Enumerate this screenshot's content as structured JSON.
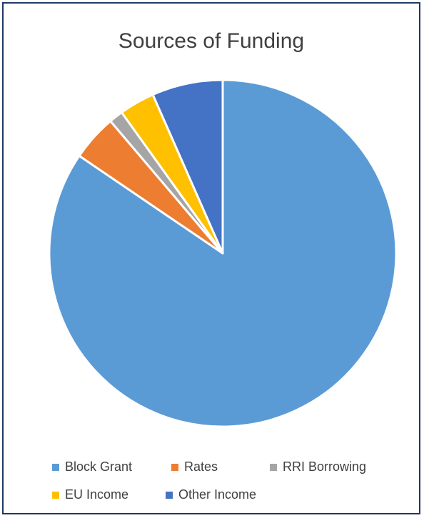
{
  "chart_data": {
    "type": "pie",
    "title": "Sources of Funding",
    "legend_position": "bottom",
    "slices": [
      {
        "label": "Block Grant",
        "value": 84.5,
        "color": "#5b9bd5"
      },
      {
        "label": "Rates",
        "value": 4.3,
        "color": "#ed7d31"
      },
      {
        "label": "RRI Borrowing",
        "value": 1.3,
        "color": "#a5a5a5"
      },
      {
        "label": "EU Income",
        "value": 3.3,
        "color": "#ffc000"
      },
      {
        "label": "Other Income",
        "value": 6.6,
        "color": "#4472c4"
      }
    ]
  }
}
